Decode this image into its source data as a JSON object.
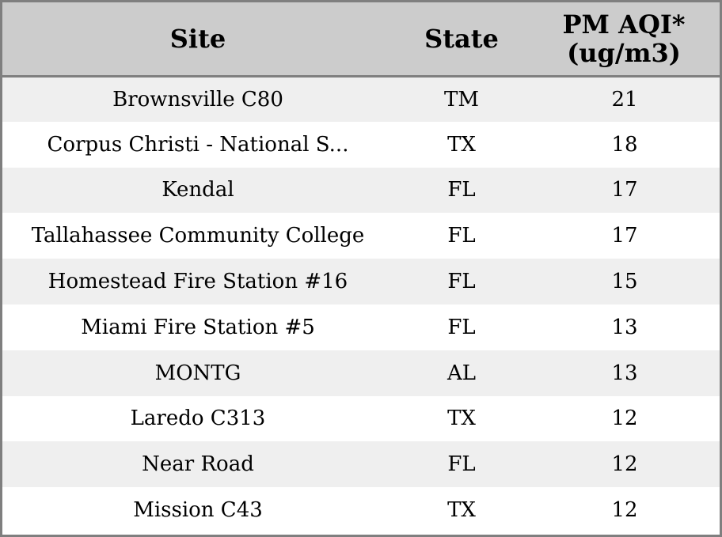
{
  "table": {
    "headers": {
      "site": "Site",
      "state": "State",
      "aqi_line1": "PM AQI*",
      "aqi_line2": "(ug/m3)"
    },
    "rows": [
      {
        "site": "Brownsville C80",
        "state": "TM",
        "aqi": "21"
      },
      {
        "site": "Corpus Christi - National S...",
        "state": "TX",
        "aqi": "18"
      },
      {
        "site": "Kendal",
        "state": "FL",
        "aqi": "17"
      },
      {
        "site": "Tallahassee Community College",
        "state": "FL",
        "aqi": "17"
      },
      {
        "site": "Homestead Fire Station #16",
        "state": "FL",
        "aqi": "15"
      },
      {
        "site": "Miami Fire Station #5",
        "state": "FL",
        "aqi": "13"
      },
      {
        "site": "MONTG",
        "state": "AL",
        "aqi": "13"
      },
      {
        "site": "Laredo C313",
        "state": "TX",
        "aqi": "12"
      },
      {
        "site": "Near Road",
        "state": "FL",
        "aqi": "12"
      },
      {
        "site": "Mission C43",
        "state": "TX",
        "aqi": "12"
      }
    ]
  },
  "colors": {
    "header_bg": "#cccccc",
    "row_stripe": "#efefef",
    "row_plain": "#ffffff",
    "border": "#7f7f7f"
  }
}
